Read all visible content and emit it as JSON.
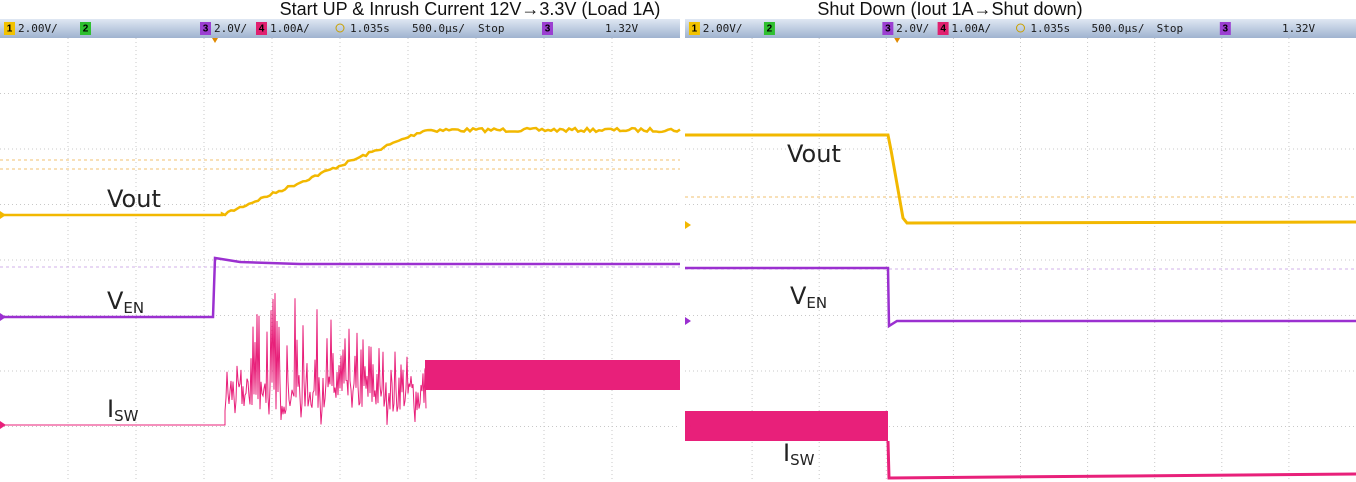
{
  "panels": [
    {
      "title": "Start UP & Inrush Current 12V→3.3V (Load 1A)",
      "header": {
        "ch1": "1",
        "ch1_scale": "2.00V/",
        "ch2": "2",
        "ch3": "3",
        "ch3_scale": "2.0V/",
        "ch4": "4",
        "ch4_scale": "1.00A/",
        "time_offset": "1.035s",
        "time_scale": "500.0µs/",
        "status": "Stop",
        "trigger_ch": "3",
        "trigger_level": "1.32V"
      },
      "trace_labels": [
        {
          "text": "Vout"
        },
        {
          "text": "V",
          "sub": "EN"
        },
        {
          "text": "I",
          "sub": "SW"
        }
      ]
    },
    {
      "title": "Shut Down (Iout 1A→Shut down)",
      "header": {
        "ch1": "1",
        "ch1_scale": "2.00V/",
        "ch2": "2",
        "ch3": "3",
        "ch3_scale": "2.0V/",
        "ch4": "4",
        "ch4_scale": "1.00A/",
        "time_offset": "1.035s",
        "time_scale": "500.0µs/",
        "status": "Stop",
        "trigger_ch": "3",
        "trigger_level": "1.32V"
      },
      "trace_labels": [
        {
          "text": "Vout"
        },
        {
          "text": "V",
          "sub": "EN"
        },
        {
          "text": "I",
          "sub": "SW"
        }
      ]
    }
  ]
}
